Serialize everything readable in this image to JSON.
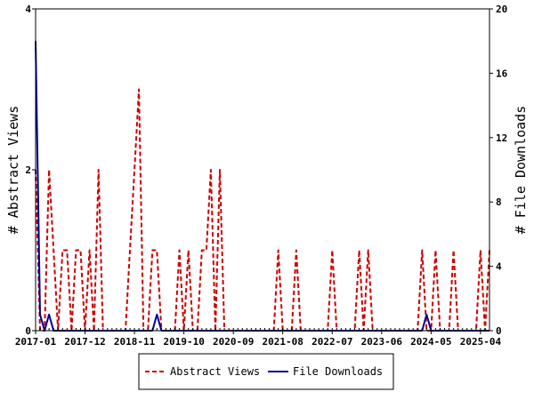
{
  "chart_data": {
    "type": "line",
    "xlabel": "",
    "ylabel_left": "# Abstract Views",
    "ylabel_right": "# File Downloads",
    "x_ticks": [
      "2017-01",
      "2017-12",
      "2018-11",
      "2019-10",
      "2020-09",
      "2021-08",
      "2022-07",
      "2023-06",
      "2024-05",
      "2025-04"
    ],
    "y_left_ticks": [
      0,
      2,
      4
    ],
    "y_right_ticks": [
      0,
      4,
      8,
      12,
      16,
      20
    ],
    "y_left_lim": [
      0,
      4
    ],
    "y_right_lim": [
      0,
      20
    ],
    "x_range_months": [
      "2017-01",
      "2025-06"
    ],
    "legend_position": "bottom",
    "series": [
      {
        "name": "Abstract Views",
        "axis": "left",
        "color": "#cc0000",
        "style": "dashed",
        "points": [
          [
            "2017-01",
            2
          ],
          [
            "2017-02",
            0
          ],
          [
            "2017-03",
            0
          ],
          [
            "2017-04",
            2
          ],
          [
            "2017-05",
            1
          ],
          [
            "2017-06",
            0
          ],
          [
            "2017-07",
            1
          ],
          [
            "2017-08",
            1
          ],
          [
            "2017-09",
            0
          ],
          [
            "2017-10",
            1
          ],
          [
            "2017-11",
            1
          ],
          [
            "2017-12",
            0
          ],
          [
            "2018-01",
            1
          ],
          [
            "2018-02",
            0
          ],
          [
            "2018-03",
            2
          ],
          [
            "2018-04",
            0
          ],
          [
            "2018-05",
            0
          ],
          [
            "2018-06",
            0
          ],
          [
            "2018-07",
            0
          ],
          [
            "2018-08",
            0
          ],
          [
            "2018-09",
            0
          ],
          [
            "2018-10",
            1
          ],
          [
            "2018-11",
            2
          ],
          [
            "2018-12",
            3
          ],
          [
            "2019-01",
            0
          ],
          [
            "2019-02",
            0
          ],
          [
            "2019-03",
            1
          ],
          [
            "2019-04",
            1
          ],
          [
            "2019-05",
            0
          ],
          [
            "2019-06",
            0
          ],
          [
            "2019-07",
            0
          ],
          [
            "2019-08",
            0
          ],
          [
            "2019-09",
            1
          ],
          [
            "2019-10",
            0
          ],
          [
            "2019-11",
            1
          ],
          [
            "2019-12",
            0
          ],
          [
            "2020-01",
            0
          ],
          [
            "2020-02",
            1
          ],
          [
            "2020-03",
            1
          ],
          [
            "2020-04",
            2
          ],
          [
            "2020-05",
            0
          ],
          [
            "2020-06",
            2
          ],
          [
            "2020-07",
            0
          ],
          [
            "2020-08",
            0
          ],
          [
            "2020-09",
            0
          ],
          [
            "2020-10",
            0
          ],
          [
            "2020-11",
            0
          ],
          [
            "2020-12",
            0
          ],
          [
            "2021-01",
            0
          ],
          [
            "2021-02",
            0
          ],
          [
            "2021-03",
            0
          ],
          [
            "2021-04",
            0
          ],
          [
            "2021-05",
            0
          ],
          [
            "2021-06",
            0
          ],
          [
            "2021-07",
            1
          ],
          [
            "2021-08",
            0
          ],
          [
            "2021-09",
            0
          ],
          [
            "2021-10",
            0
          ],
          [
            "2021-11",
            1
          ],
          [
            "2021-12",
            0
          ],
          [
            "2022-01",
            0
          ],
          [
            "2022-02",
            0
          ],
          [
            "2022-03",
            0
          ],
          [
            "2022-04",
            0
          ],
          [
            "2022-05",
            0
          ],
          [
            "2022-06",
            0
          ],
          [
            "2022-07",
            1
          ],
          [
            "2022-08",
            0
          ],
          [
            "2022-09",
            0
          ],
          [
            "2022-10",
            0
          ],
          [
            "2022-11",
            0
          ],
          [
            "2022-12",
            0
          ],
          [
            "2023-01",
            1
          ],
          [
            "2023-02",
            0
          ],
          [
            "2023-03",
            1
          ],
          [
            "2023-04",
            0
          ],
          [
            "2023-05",
            0
          ],
          [
            "2023-06",
            0
          ],
          [
            "2023-07",
            0
          ],
          [
            "2023-08",
            0
          ],
          [
            "2023-09",
            0
          ],
          [
            "2023-10",
            0
          ],
          [
            "2023-11",
            0
          ],
          [
            "2023-12",
            0
          ],
          [
            "2024-01",
            0
          ],
          [
            "2024-02",
            0
          ],
          [
            "2024-03",
            1
          ],
          [
            "2024-04",
            0
          ],
          [
            "2024-05",
            0
          ],
          [
            "2024-06",
            1
          ],
          [
            "2024-07",
            0
          ],
          [
            "2024-08",
            0
          ],
          [
            "2024-09",
            0
          ],
          [
            "2024-10",
            1
          ],
          [
            "2024-11",
            0
          ],
          [
            "2024-12",
            0
          ],
          [
            "2025-01",
            0
          ],
          [
            "2025-02",
            0
          ],
          [
            "2025-03",
            0
          ],
          [
            "2025-04",
            1
          ],
          [
            "2025-05",
            0
          ],
          [
            "2025-06",
            1
          ]
        ]
      },
      {
        "name": "File Downloads",
        "axis": "right",
        "color": "#000099",
        "style": "solid",
        "points": [
          [
            "2017-01",
            18
          ],
          [
            "2017-02",
            1
          ],
          [
            "2017-03",
            0
          ],
          [
            "2017-04",
            1
          ],
          [
            "2017-05",
            0
          ],
          [
            "2017-06",
            0
          ],
          [
            "2017-07",
            0
          ],
          [
            "2017-08",
            0
          ],
          [
            "2017-09",
            0
          ],
          [
            "2017-10",
            0
          ],
          [
            "2017-11",
            0
          ],
          [
            "2017-12",
            0
          ],
          [
            "2018-01",
            0
          ],
          [
            "2018-02",
            0
          ],
          [
            "2018-03",
            0
          ],
          [
            "2018-04",
            0
          ],
          [
            "2018-05",
            0
          ],
          [
            "2018-06",
            0
          ],
          [
            "2018-07",
            0
          ],
          [
            "2018-08",
            0
          ],
          [
            "2018-09",
            0
          ],
          [
            "2018-10",
            0
          ],
          [
            "2018-11",
            0
          ],
          [
            "2018-12",
            0
          ],
          [
            "2019-01",
            0
          ],
          [
            "2019-02",
            0
          ],
          [
            "2019-03",
            0
          ],
          [
            "2019-04",
            1
          ],
          [
            "2019-05",
            0
          ],
          [
            "2019-06",
            0
          ],
          [
            "2019-07",
            0
          ],
          [
            "2019-08",
            0
          ],
          [
            "2019-09",
            0
          ],
          [
            "2019-10",
            0
          ],
          [
            "2019-11",
            0
          ],
          [
            "2019-12",
            0
          ],
          [
            "2020-01",
            0
          ],
          [
            "2020-02",
            0
          ],
          [
            "2020-03",
            0
          ],
          [
            "2020-04",
            0
          ],
          [
            "2020-05",
            0
          ],
          [
            "2020-06",
            0
          ],
          [
            "2020-07",
            0
          ],
          [
            "2020-08",
            0
          ],
          [
            "2020-09",
            0
          ],
          [
            "2020-10",
            0
          ],
          [
            "2020-11",
            0
          ],
          [
            "2020-12",
            0
          ],
          [
            "2021-01",
            0
          ],
          [
            "2021-02",
            0
          ],
          [
            "2021-03",
            0
          ],
          [
            "2021-04",
            0
          ],
          [
            "2021-05",
            0
          ],
          [
            "2021-06",
            0
          ],
          [
            "2021-07",
            0
          ],
          [
            "2021-08",
            0
          ],
          [
            "2021-09",
            0
          ],
          [
            "2021-10",
            0
          ],
          [
            "2021-11",
            0
          ],
          [
            "2021-12",
            0
          ],
          [
            "2022-01",
            0
          ],
          [
            "2022-02",
            0
          ],
          [
            "2022-03",
            0
          ],
          [
            "2022-04",
            0
          ],
          [
            "2022-05",
            0
          ],
          [
            "2022-06",
            0
          ],
          [
            "2022-07",
            0
          ],
          [
            "2022-08",
            0
          ],
          [
            "2022-09",
            0
          ],
          [
            "2022-10",
            0
          ],
          [
            "2022-11",
            0
          ],
          [
            "2022-12",
            0
          ],
          [
            "2023-01",
            0
          ],
          [
            "2023-02",
            0
          ],
          [
            "2023-03",
            0
          ],
          [
            "2023-04",
            0
          ],
          [
            "2023-05",
            0
          ],
          [
            "2023-06",
            0
          ],
          [
            "2023-07",
            0
          ],
          [
            "2023-08",
            0
          ],
          [
            "2023-09",
            0
          ],
          [
            "2023-10",
            0
          ],
          [
            "2023-11",
            0
          ],
          [
            "2023-12",
            0
          ],
          [
            "2024-01",
            0
          ],
          [
            "2024-02",
            0
          ],
          [
            "2024-03",
            0
          ],
          [
            "2024-04",
            1
          ],
          [
            "2024-05",
            0
          ],
          [
            "2024-06",
            0
          ],
          [
            "2024-07",
            0
          ],
          [
            "2024-08",
            0
          ],
          [
            "2024-09",
            0
          ],
          [
            "2024-10",
            0
          ],
          [
            "2024-11",
            0
          ],
          [
            "2024-12",
            0
          ],
          [
            "2025-01",
            0
          ],
          [
            "2025-02",
            0
          ],
          [
            "2025-03",
            0
          ],
          [
            "2025-04",
            0
          ],
          [
            "2025-05",
            0
          ],
          [
            "2025-06",
            0
          ]
        ]
      }
    ]
  }
}
